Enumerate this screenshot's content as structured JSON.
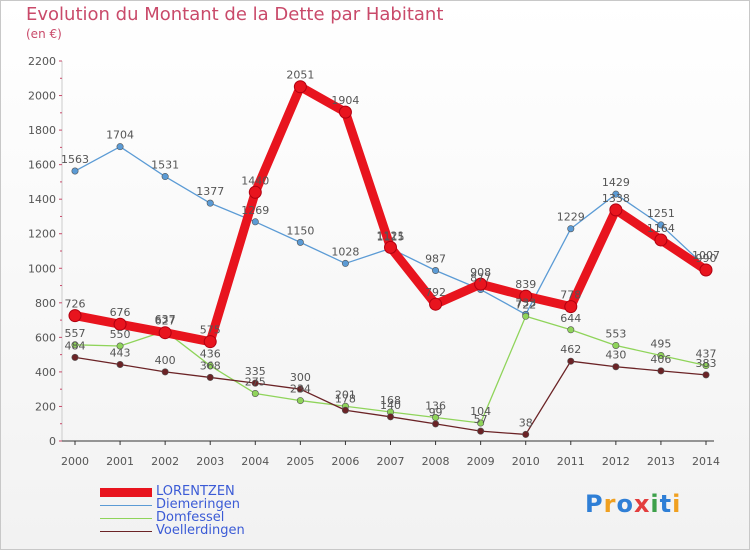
{
  "title": "Evolution du Montant de la Dette par Habitant",
  "subtitle": "(en €)",
  "logo": {
    "letters": [
      "P",
      "r",
      "o",
      "x",
      "i",
      "t",
      "i"
    ],
    "colors": [
      "#2f7fd6",
      "#f0a020",
      "#2f7fd6",
      "#e33d3d",
      "#3da04a",
      "#2f7fd6",
      "#f0a020"
    ]
  },
  "chart_data": {
    "type": "line",
    "title": "Evolution du Montant de la Dette par Habitant",
    "ylabel": "(en €)",
    "ylim": [
      0,
      2200
    ],
    "yticks": [
      0,
      200,
      400,
      600,
      800,
      1000,
      1200,
      1400,
      1600,
      1800,
      2000,
      2200
    ],
    "x": [
      "2000",
      "2001",
      "2002",
      "2003",
      "2004",
      "2005",
      "2006",
      "2007",
      "2008",
      "2009",
      "2010",
      "2011",
      "2012",
      "2013",
      "2014"
    ],
    "grid": false,
    "legend_position": "bottom-left",
    "series": [
      {
        "name": "LORENTZEN",
        "color": "#e8141e",
        "values": [
          726,
          676,
          627,
          575,
          1440,
          2051,
          1904,
          1121,
          792,
          908,
          839,
          778,
          1338,
          1164,
          990
        ]
      },
      {
        "name": "Diemeringen",
        "color": "#5b9bd5",
        "values": [
          1563,
          1704,
          1531,
          1377,
          1269,
          1150,
          1028,
          1115,
          987,
          877,
          733,
          1229,
          1429,
          1251,
          1007
        ]
      },
      {
        "name": "Domfessel",
        "color": "#8fd45a",
        "values": [
          557,
          550,
          637,
          436,
          275,
          234,
          201,
          168,
          136,
          104,
          722,
          644,
          553,
          495,
          437
        ]
      },
      {
        "name": "Voellerdingen",
        "color": "#6b2326",
        "values": [
          484,
          443,
          400,
          368,
          335,
          300,
          178,
          140,
          99,
          57,
          38,
          462,
          430,
          406,
          383
        ]
      }
    ]
  }
}
